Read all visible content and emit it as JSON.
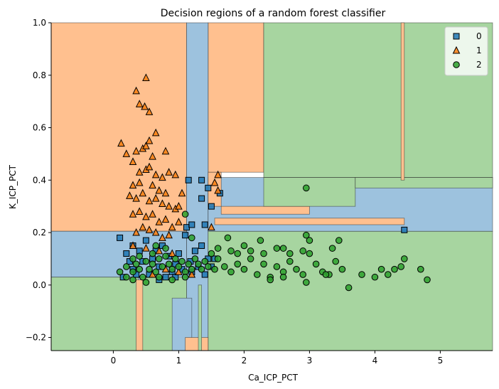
{
  "chart_data": {
    "type": "scatter",
    "title": "Decision regions of a random forest classifier",
    "xlabel": "Ca_ICP_PCT",
    "ylabel": "K_ICP_PCT",
    "xlim": [
      -0.95,
      5.8
    ],
    "ylim": [
      -0.25,
      1.0
    ],
    "x_ticks": [
      "0",
      "1",
      "2",
      "3",
      "4",
      "5"
    ],
    "y_ticks": [
      "−0.2",
      "0.0",
      "0.2",
      "0.4",
      "0.6",
      "0.8",
      "1.0"
    ],
    "grid": false,
    "legend_position": "top-right",
    "class_colors": {
      "0": "#1f77b4",
      "1": "#ff7f0e",
      "2": "#2ca02c"
    },
    "region_colors": {
      "0": "#9dc2de",
      "1": "#ffc08f",
      "2": "#a7d5a0"
    },
    "regions": [
      {
        "class": "1",
        "x": [
          -0.95,
          1.12
        ],
        "y": [
          0.205,
          1.0
        ]
      },
      {
        "class": "1",
        "x": [
          1.45,
          2.3
        ],
        "y": [
          0.43,
          1.0
        ]
      },
      {
        "class": "2",
        "x": [
          2.3,
          5.8
        ],
        "y": [
          0.41,
          1.0
        ]
      },
      {
        "class": "0",
        "x": [
          1.12,
          1.45
        ],
        "y": [
          -0.25,
          1.0
        ]
      },
      {
        "class": "0",
        "x": [
          -0.95,
          1.12
        ],
        "y": [
          0.03,
          0.205
        ]
      },
      {
        "class": "2",
        "x": [
          -0.95,
          1.12
        ],
        "y": [
          -0.25,
          0.03
        ]
      },
      {
        "class": "2",
        "x": [
          1.45,
          5.8
        ],
        "y": [
          -0.25,
          0.205
        ]
      },
      {
        "class": "0",
        "x": [
          1.45,
          5.8
        ],
        "y": [
          0.205,
          0.41
        ]
      },
      {
        "class": "1",
        "x": [
          1.55,
          4.45
        ],
        "y": [
          0.23,
          0.255
        ]
      },
      {
        "class": "1",
        "x": [
          1.65,
          3.0
        ],
        "y": [
          0.27,
          0.3
        ]
      },
      {
        "class": "1",
        "x": [
          1.45,
          1.65
        ],
        "y": [
          0.3,
          0.43
        ]
      },
      {
        "class": "2",
        "x": [
          2.3,
          3.7
        ],
        "y": [
          0.3,
          0.41
        ]
      },
      {
        "class": "2",
        "x": [
          3.7,
          5.8
        ],
        "y": [
          0.37,
          0.41
        ]
      },
      {
        "class": "0",
        "x": [
          0.9,
          1.2
        ],
        "y": [
          -0.25,
          -0.05
        ]
      },
      {
        "class": "0",
        "x": [
          0.38,
          0.42
        ],
        "y": [
          -0.25,
          0.03
        ]
      },
      {
        "class": "1",
        "x": [
          4.4,
          4.45
        ],
        "y": [
          0.4,
          1.0
        ]
      },
      {
        "class": "1",
        "x": [
          0.35,
          0.45
        ],
        "y": [
          -0.25,
          0.02
        ]
      },
      {
        "class": "1",
        "x": [
          1.1,
          1.45
        ],
        "y": [
          -0.25,
          -0.2
        ]
      },
      {
        "class": "2",
        "x": [
          1.3,
          1.35
        ],
        "y": [
          -0.25,
          0.0
        ]
      }
    ],
    "series": [
      {
        "name": "0",
        "marker": "square",
        "points": [
          [
            0.1,
            0.18
          ],
          [
            0.2,
            0.12
          ],
          [
            0.3,
            0.15
          ],
          [
            0.3,
            0.06
          ],
          [
            0.4,
            0.13
          ],
          [
            0.45,
            0.09
          ],
          [
            0.5,
            0.17
          ],
          [
            0.55,
            0.04
          ],
          [
            0.6,
            0.1
          ],
          [
            0.65,
            0.13
          ],
          [
            0.7,
            0.07
          ],
          [
            0.75,
            0.15
          ],
          [
            0.8,
            0.03
          ],
          [
            0.85,
            0.11
          ],
          [
            0.9,
            0.05
          ],
          [
            0.95,
            0.08
          ],
          [
            1.0,
            0.12
          ],
          [
            1.05,
            0.06
          ],
          [
            1.1,
            0.19
          ],
          [
            1.12,
            0.22
          ],
          [
            1.18,
            0.09
          ],
          [
            1.2,
            0.05
          ],
          [
            1.25,
            0.13
          ],
          [
            1.3,
            0.07
          ],
          [
            1.35,
            0.15
          ],
          [
            1.4,
            0.04
          ],
          [
            1.45,
            0.1
          ],
          [
            1.5,
            0.07
          ],
          [
            1.55,
            0.1
          ],
          [
            0.35,
            0.04
          ],
          [
            0.25,
            0.09
          ],
          [
            0.15,
            0.03
          ],
          [
            0.7,
            0.02
          ],
          [
            0.95,
            0.03
          ],
          [
            1.15,
            0.4
          ],
          [
            1.35,
            0.4
          ],
          [
            1.35,
            0.33
          ],
          [
            1.45,
            0.37
          ],
          [
            1.63,
            0.35
          ],
          [
            1.5,
            0.3
          ],
          [
            1.2,
            0.23
          ],
          [
            1.4,
            0.23
          ],
          [
            4.45,
            0.21
          ]
        ]
      },
      {
        "name": "1",
        "marker": "triangle",
        "points": [
          [
            0.12,
            0.54
          ],
          [
            0.35,
            0.74
          ],
          [
            0.4,
            0.69
          ],
          [
            0.48,
            0.68
          ],
          [
            0.5,
            0.79
          ],
          [
            0.55,
            0.66
          ],
          [
            0.65,
            0.58
          ],
          [
            0.2,
            0.5
          ],
          [
            0.3,
            0.47
          ],
          [
            0.35,
            0.51
          ],
          [
            0.45,
            0.52
          ],
          [
            0.5,
            0.53
          ],
          [
            0.55,
            0.55
          ],
          [
            0.6,
            0.49
          ],
          [
            0.8,
            0.51
          ],
          [
            0.4,
            0.43
          ],
          [
            0.5,
            0.44
          ],
          [
            0.55,
            0.45
          ],
          [
            0.65,
            0.42
          ],
          [
            0.75,
            0.41
          ],
          [
            0.85,
            0.43
          ],
          [
            0.95,
            0.42
          ],
          [
            0.3,
            0.38
          ],
          [
            0.4,
            0.39
          ],
          [
            0.6,
            0.38
          ],
          [
            0.7,
            0.36
          ],
          [
            0.8,
            0.35
          ],
          [
            0.25,
            0.34
          ],
          [
            0.35,
            0.33
          ],
          [
            0.45,
            0.35
          ],
          [
            0.55,
            0.32
          ],
          [
            0.65,
            0.33
          ],
          [
            0.75,
            0.31
          ],
          [
            0.85,
            0.3
          ],
          [
            0.95,
            0.29
          ],
          [
            0.3,
            0.27
          ],
          [
            0.4,
            0.28
          ],
          [
            0.5,
            0.26
          ],
          [
            0.6,
            0.27
          ],
          [
            0.7,
            0.24
          ],
          [
            0.8,
            0.25
          ],
          [
            0.9,
            0.22
          ],
          [
            1.0,
            0.24
          ],
          [
            0.35,
            0.2
          ],
          [
            0.45,
            0.22
          ],
          [
            0.55,
            0.21
          ],
          [
            0.65,
            0.2
          ],
          [
            0.75,
            0.18
          ],
          [
            0.85,
            0.19
          ],
          [
            0.3,
            0.15
          ],
          [
            0.5,
            0.14
          ],
          [
            0.7,
            0.13
          ],
          [
            0.9,
            0.12
          ],
          [
            1.0,
            0.3
          ],
          [
            1.05,
            0.35
          ],
          [
            1.6,
            0.42
          ],
          [
            1.55,
            0.39
          ],
          [
            1.6,
            0.36
          ],
          [
            1.5,
            0.22
          ],
          [
            0.6,
            0.04
          ],
          [
            0.8,
            0.06
          ],
          [
            1.0,
            0.05
          ],
          [
            1.2,
            0.04
          ]
        ]
      },
      {
        "name": "2",
        "marker": "circle",
        "points": [
          [
            0.1,
            0.05
          ],
          [
            0.2,
            0.03
          ],
          [
            0.3,
            0.05
          ],
          [
            0.35,
            0.08
          ],
          [
            0.4,
            0.06
          ],
          [
            0.45,
            0.03
          ],
          [
            0.5,
            0.09
          ],
          [
            0.55,
            0.06
          ],
          [
            0.6,
            0.08
          ],
          [
            0.65,
            0.05
          ],
          [
            0.7,
            0.1
          ],
          [
            0.75,
            0.07
          ],
          [
            0.8,
            0.11
          ],
          [
            0.85,
            0.08
          ],
          [
            0.9,
            0.06
          ],
          [
            0.95,
            0.1
          ],
          [
            1.0,
            0.07
          ],
          [
            1.05,
            0.09
          ],
          [
            1.1,
            0.05
          ],
          [
            1.15,
            0.08
          ],
          [
            1.2,
            0.06
          ],
          [
            1.25,
            0.1
          ],
          [
            1.3,
            0.08
          ],
          [
            1.35,
            0.06
          ],
          [
            1.4,
            0.09
          ],
          [
            1.45,
            0.07
          ],
          [
            1.5,
            0.12
          ],
          [
            1.55,
            0.06
          ],
          [
            1.6,
            0.1
          ],
          [
            1.7,
            0.07
          ],
          [
            1.8,
            0.05
          ],
          [
            1.9,
            0.08
          ],
          [
            2.0,
            0.06
          ],
          [
            2.1,
            0.1
          ],
          [
            2.2,
            0.04
          ],
          [
            2.3,
            0.08
          ],
          [
            2.4,
            0.03
          ],
          [
            2.5,
            0.07
          ],
          [
            2.6,
            0.05
          ],
          [
            2.7,
            0.09
          ],
          [
            2.8,
            0.06
          ],
          [
            2.9,
            0.04
          ],
          [
            3.0,
            0.12
          ],
          [
            3.1,
            0.08
          ],
          [
            3.2,
            0.05
          ],
          [
            3.3,
            0.04
          ],
          [
            3.4,
            0.09
          ],
          [
            3.5,
            0.06
          ],
          [
            1.6,
            0.14
          ],
          [
            1.8,
            0.13
          ],
          [
            2.0,
            0.15
          ],
          [
            2.1,
            0.13
          ],
          [
            2.3,
            0.12
          ],
          [
            2.5,
            0.14
          ],
          [
            2.7,
            0.12
          ],
          [
            2.9,
            0.13
          ],
          [
            1.9,
            0.12
          ],
          [
            2.25,
            0.17
          ],
          [
            2.6,
            0.14
          ],
          [
            2.95,
            0.19
          ],
          [
            3.0,
            0.17
          ],
          [
            3.35,
            0.14
          ],
          [
            3.45,
            0.17
          ],
          [
            1.75,
            0.18
          ],
          [
            1.2,
            0.18
          ],
          [
            1.1,
            0.27
          ],
          [
            2.95,
            0.37
          ],
          [
            3.6,
            -0.01
          ],
          [
            3.8,
            0.04
          ],
          [
            4.0,
            0.03
          ],
          [
            4.1,
            0.06
          ],
          [
            4.2,
            0.04
          ],
          [
            4.3,
            0.06
          ],
          [
            4.4,
            0.07
          ],
          [
            4.45,
            0.1
          ],
          [
            4.7,
            0.06
          ],
          [
            4.8,
            0.02
          ],
          [
            3.25,
            0.04
          ],
          [
            2.95,
            0.01
          ],
          [
            2.6,
            0.03
          ],
          [
            2.4,
            0.02
          ],
          [
            0.3,
            0.02
          ],
          [
            0.5,
            0.01
          ],
          [
            0.7,
            0.03
          ],
          [
            0.9,
            0.02
          ],
          [
            1.1,
            0.03
          ],
          [
            0.2,
            0.07
          ],
          [
            0.4,
            0.11
          ],
          [
            0.6,
            0.12
          ],
          [
            0.8,
            0.14
          ],
          [
            0.3,
            0.1
          ],
          [
            0.65,
            0.15
          ]
        ]
      }
    ],
    "legend_entries": [
      "0",
      "1",
      "2"
    ]
  }
}
